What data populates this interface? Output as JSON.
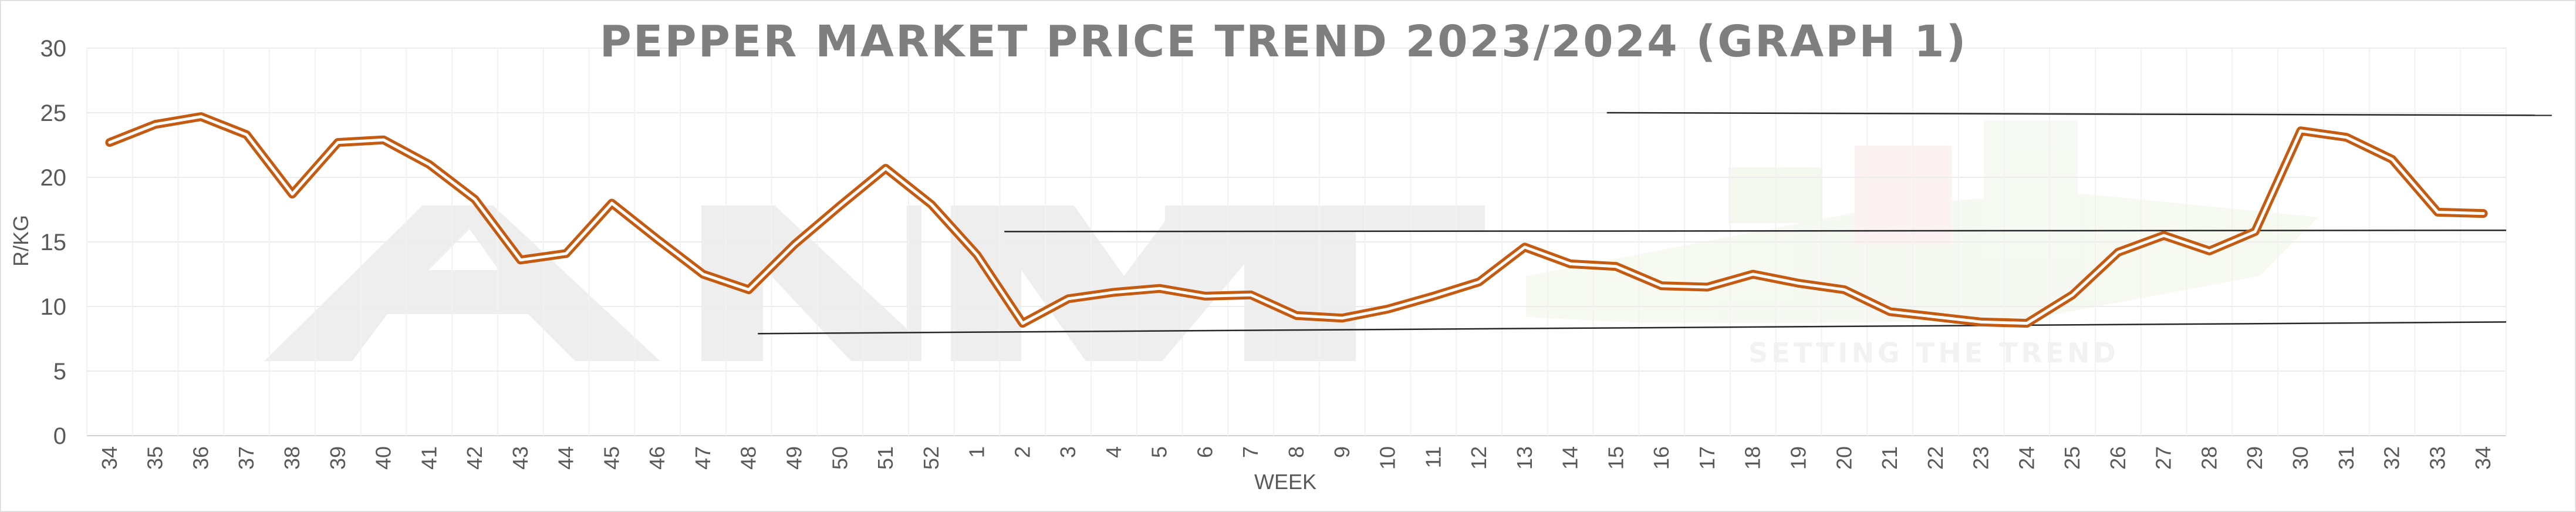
{
  "chart_data": {
    "type": "line",
    "title": "PEPPER MARKET PRICE TREND 2023/2024 (GRAPH 1)",
    "xlabel": "WEEK",
    "ylabel": "R/KG",
    "ylim": [
      0,
      30
    ],
    "yticks": [
      0,
      5,
      10,
      15,
      20,
      25,
      30
    ],
    "grid": true,
    "legend": "none",
    "categories": [
      "34",
      "35",
      "36",
      "37",
      "38",
      "39",
      "40",
      "41",
      "42",
      "43",
      "44",
      "45",
      "46",
      "47",
      "48",
      "49",
      "50",
      "51",
      "52",
      "1",
      "2",
      "3",
      "4",
      "5",
      "6",
      "7",
      "8",
      "9",
      "10",
      "11",
      "12",
      "13",
      "14",
      "15",
      "16",
      "17",
      "18",
      "19",
      "20",
      "21",
      "22",
      "23",
      "24",
      "25",
      "26",
      "27",
      "28",
      "29",
      "30",
      "31",
      "32",
      "33",
      "34"
    ],
    "series": [
      {
        "values": [
          22.7,
          24.1,
          24.7,
          23.3,
          18.7,
          22.7,
          22.9,
          21.0,
          18.3,
          13.6,
          14.1,
          18.0,
          15.2,
          12.5,
          11.3,
          14.8,
          17.8,
          20.7,
          17.9,
          14.0,
          8.7,
          10.6,
          11.1,
          11.4,
          10.8,
          10.9,
          9.3,
          9.1,
          9.8,
          10.8,
          11.9,
          14.6,
          13.3,
          13.1,
          11.6,
          11.5,
          12.5,
          11.8,
          11.3,
          9.6,
          9.2,
          8.8,
          8.7,
          10.9,
          14.2,
          15.5,
          14.3,
          15.8,
          23.6,
          23.1,
          21.4,
          17.3,
          17.2
        ],
        "color": "#c55a11"
      }
    ],
    "trendlines": [
      {
        "from": [
          15.2,
          7.9
        ],
        "to": [
          53.5,
          8.8
        ]
      },
      {
        "from": [
          20.6,
          15.8
        ],
        "to": [
          53.5,
          15.9
        ]
      },
      {
        "from": [
          33.8,
          25.0
        ],
        "to": [
          54.5,
          24.8
        ]
      }
    ],
    "watermark_text": "SETTING THE TREND",
    "watermark_logo": "AMT"
  }
}
